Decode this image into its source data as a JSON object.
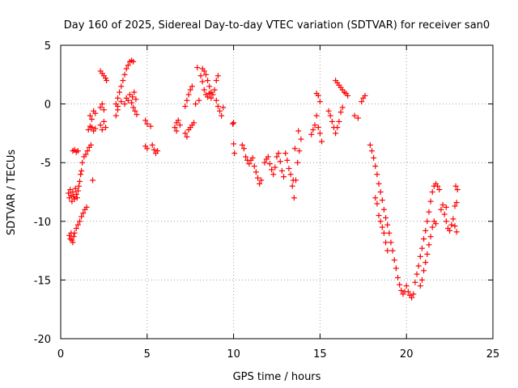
{
  "chart_data": {
    "type": "scatter",
    "title": "Day 160 of 2025, Sidereal Day-to-day VTEC variation (SDTVAR) for receiver san0",
    "xlabel": "GPS time / hours",
    "ylabel": "SDTVAR / TECUs",
    "xlim": [
      0,
      25
    ],
    "ylim": [
      -20,
      5
    ],
    "xticks": [
      0,
      5,
      10,
      15,
      20,
      25
    ],
    "yticks": [
      -20,
      -15,
      -10,
      -5,
      0,
      5
    ],
    "grid": true,
    "marker": "+",
    "series": [
      {
        "name": "SDTVAR",
        "color": "#ff0000",
        "points": [
          [
            0.45,
            -7.6
          ],
          [
            0.5,
            -8.0
          ],
          [
            0.55,
            -7.3
          ],
          [
            0.6,
            -7.8
          ],
          [
            0.65,
            -8.3
          ],
          [
            0.7,
            -7.5
          ],
          [
            0.75,
            -7.9
          ],
          [
            0.8,
            -8.1
          ],
          [
            0.85,
            -7.2
          ],
          [
            0.9,
            -7.7
          ],
          [
            0.95,
            -8.0
          ],
          [
            1.0,
            -7.4
          ],
          [
            1.05,
            -7.0
          ],
          [
            1.1,
            -6.6
          ],
          [
            1.15,
            -6.0
          ],
          [
            1.2,
            -5.7
          ],
          [
            1.25,
            -5.0
          ],
          [
            0.5,
            -11.2
          ],
          [
            0.55,
            -11.5
          ],
          [
            0.6,
            -11.0
          ],
          [
            0.65,
            -11.6
          ],
          [
            0.7,
            -11.8
          ],
          [
            0.75,
            -11.3
          ],
          [
            0.8,
            -11.0
          ],
          [
            0.9,
            -10.6
          ],
          [
            1.0,
            -10.3
          ],
          [
            1.1,
            -10.0
          ],
          [
            1.2,
            -9.6
          ],
          [
            1.3,
            -9.3
          ],
          [
            1.4,
            -9.0
          ],
          [
            1.5,
            -8.8
          ],
          [
            0.7,
            -4.0
          ],
          [
            0.8,
            -3.9
          ],
          [
            0.9,
            -4.1
          ],
          [
            1.0,
            -4.0
          ],
          [
            1.35,
            -4.5
          ],
          [
            1.45,
            -4.3
          ],
          [
            1.55,
            -4.0
          ],
          [
            1.65,
            -3.7
          ],
          [
            1.75,
            -3.5
          ],
          [
            1.85,
            -6.5
          ],
          [
            1.6,
            -2.2
          ],
          [
            1.7,
            -1.9
          ],
          [
            1.8,
            -2.0
          ],
          [
            1.9,
            -2.3
          ],
          [
            2.0,
            -2.1
          ],
          [
            1.7,
            -1.0
          ],
          [
            1.8,
            -1.3
          ],
          [
            1.9,
            -0.6
          ],
          [
            2.0,
            -0.8
          ],
          [
            2.3,
            -1.8
          ],
          [
            2.4,
            -2.2
          ],
          [
            2.5,
            -1.5
          ],
          [
            2.6,
            -2.0
          ],
          [
            2.3,
            -0.3
          ],
          [
            2.4,
            0.0
          ],
          [
            2.5,
            -0.5
          ],
          [
            2.3,
            2.8
          ],
          [
            2.4,
            2.6
          ],
          [
            2.5,
            2.4
          ],
          [
            2.6,
            2.2
          ],
          [
            2.65,
            2.0
          ],
          [
            3.2,
            -1.0
          ],
          [
            3.3,
            -0.5
          ],
          [
            3.2,
            0.0
          ],
          [
            3.3,
            0.5
          ],
          [
            3.4,
            1.0
          ],
          [
            3.5,
            1.5
          ],
          [
            3.6,
            2.0
          ],
          [
            3.7,
            2.5
          ],
          [
            3.8,
            3.0
          ],
          [
            3.9,
            3.3
          ],
          [
            4.0,
            3.6
          ],
          [
            4.1,
            3.7
          ],
          [
            4.2,
            3.6
          ],
          [
            3.3,
            -0.2
          ],
          [
            3.5,
            0.2
          ],
          [
            3.7,
            0.0
          ],
          [
            3.8,
            0.5
          ],
          [
            3.9,
            0.3
          ],
          [
            4.0,
            0.8
          ],
          [
            4.1,
            0.1
          ],
          [
            4.2,
            -0.3
          ],
          [
            4.3,
            -0.6
          ],
          [
            4.4,
            -0.9
          ],
          [
            4.15,
            0.6
          ],
          [
            4.25,
            1.0
          ],
          [
            4.35,
            0.4
          ],
          [
            4.9,
            -1.4
          ],
          [
            5.0,
            -1.7
          ],
          [
            5.2,
            -1.9
          ],
          [
            4.9,
            -3.6
          ],
          [
            5.0,
            -3.8
          ],
          [
            5.3,
            -3.5
          ],
          [
            5.4,
            -3.9
          ],
          [
            5.5,
            -4.2
          ],
          [
            5.6,
            -4.0
          ],
          [
            6.6,
            -2.0
          ],
          [
            6.7,
            -1.6
          ],
          [
            6.8,
            -1.4
          ],
          [
            6.9,
            -1.8
          ],
          [
            6.7,
            -2.3
          ],
          [
            7.2,
            -2.5
          ],
          [
            7.3,
            -2.8
          ],
          [
            7.4,
            -2.2
          ],
          [
            7.5,
            -2.0
          ],
          [
            7.6,
            -1.8
          ],
          [
            7.7,
            -1.6
          ],
          [
            7.2,
            -0.2
          ],
          [
            7.3,
            0.3
          ],
          [
            7.4,
            0.8
          ],
          [
            7.5,
            1.2
          ],
          [
            7.6,
            1.5
          ],
          [
            7.8,
            0.0
          ],
          [
            8.0,
            0.3
          ],
          [
            7.9,
            3.1
          ],
          [
            8.1,
            2.4
          ],
          [
            8.2,
            1.9
          ],
          [
            8.3,
            1.2
          ],
          [
            8.4,
            0.8
          ],
          [
            8.2,
            3.0
          ],
          [
            8.3,
            2.8
          ],
          [
            8.4,
            2.5
          ],
          [
            8.5,
            2.0
          ],
          [
            8.6,
            1.5
          ],
          [
            8.7,
            1.0
          ],
          [
            8.5,
            0.6
          ],
          [
            8.6,
            0.9
          ],
          [
            8.7,
            0.5
          ],
          [
            8.8,
            0.8
          ],
          [
            8.9,
            1.2
          ],
          [
            9.0,
            2.0
          ],
          [
            9.1,
            2.4
          ],
          [
            9.0,
            0.3
          ],
          [
            9.1,
            -0.2
          ],
          [
            9.2,
            -0.6
          ],
          [
            9.3,
            -1.0
          ],
          [
            9.4,
            -0.3
          ],
          [
            9.95,
            -1.7
          ],
          [
            10.0,
            -1.6
          ],
          [
            10.0,
            -3.4
          ],
          [
            10.05,
            -4.2
          ],
          [
            10.5,
            -3.5
          ],
          [
            10.6,
            -3.8
          ],
          [
            10.7,
            -4.5
          ],
          [
            10.8,
            -4.8
          ],
          [
            10.9,
            -5.1
          ],
          [
            11.0,
            -4.8
          ],
          [
            11.1,
            -4.6
          ],
          [
            11.2,
            -5.3
          ],
          [
            11.3,
            -5.8
          ],
          [
            11.4,
            -6.3
          ],
          [
            11.5,
            -6.8
          ],
          [
            11.6,
            -6.5
          ],
          [
            11.8,
            -5.0
          ],
          [
            11.9,
            -4.7
          ],
          [
            12.0,
            -4.5
          ],
          [
            12.1,
            -5.1
          ],
          [
            12.2,
            -5.6
          ],
          [
            12.3,
            -6.0
          ],
          [
            12.4,
            -5.4
          ],
          [
            12.5,
            -4.5
          ],
          [
            12.6,
            -4.2
          ],
          [
            12.7,
            -4.9
          ],
          [
            12.8,
            -5.7
          ],
          [
            12.9,
            -6.2
          ],
          [
            13.0,
            -4.2
          ],
          [
            13.1,
            -4.8
          ],
          [
            13.2,
            -5.5
          ],
          [
            13.3,
            -6.0
          ],
          [
            13.4,
            -7.0
          ],
          [
            13.5,
            -8.0
          ],
          [
            13.6,
            -6.5
          ],
          [
            13.7,
            -5.0
          ],
          [
            13.8,
            -4.0
          ],
          [
            13.9,
            -3.0
          ],
          [
            13.75,
            -2.3
          ],
          [
            13.55,
            -3.8
          ],
          [
            13.45,
            -6.5
          ],
          [
            14.5,
            -2.6
          ],
          [
            14.6,
            -2.2
          ],
          [
            14.7,
            -1.8
          ],
          [
            14.8,
            -1.0
          ],
          [
            14.9,
            -2.0
          ],
          [
            15.0,
            -2.5
          ],
          [
            15.1,
            -3.2
          ],
          [
            14.8,
            0.9
          ],
          [
            14.9,
            0.7
          ],
          [
            15.0,
            0.2
          ],
          [
            15.5,
            -0.6
          ],
          [
            15.6,
            -1.0
          ],
          [
            15.7,
            -1.5
          ],
          [
            15.8,
            -2.0
          ],
          [
            15.9,
            -2.5
          ],
          [
            16.0,
            -2.0
          ],
          [
            16.1,
            -1.5
          ],
          [
            16.2,
            -0.7
          ],
          [
            16.3,
            -0.3
          ],
          [
            15.9,
            2.0
          ],
          [
            16.0,
            1.8
          ],
          [
            16.1,
            1.6
          ],
          [
            16.2,
            1.4
          ],
          [
            16.3,
            1.2
          ],
          [
            16.4,
            1.0
          ],
          [
            16.5,
            0.9
          ],
          [
            16.6,
            0.7
          ],
          [
            17.0,
            -1.0
          ],
          [
            17.2,
            -1.2
          ],
          [
            17.4,
            0.2
          ],
          [
            17.5,
            0.5
          ],
          [
            17.6,
            0.7
          ],
          [
            17.9,
            -3.5
          ],
          [
            18.0,
            -4.0
          ],
          [
            18.1,
            -4.6
          ],
          [
            18.2,
            -5.3
          ],
          [
            18.3,
            -6.0
          ],
          [
            18.4,
            -6.8
          ],
          [
            18.5,
            -7.5
          ],
          [
            18.6,
            -8.2
          ],
          [
            18.7,
            -9.0
          ],
          [
            18.8,
            -9.7
          ],
          [
            18.9,
            -10.3
          ],
          [
            19.0,
            -11.0
          ],
          [
            19.1,
            -11.8
          ],
          [
            18.2,
            -8.0
          ],
          [
            18.3,
            -8.5
          ],
          [
            18.4,
            -9.5
          ],
          [
            18.5,
            -10.0
          ],
          [
            18.6,
            -10.5
          ],
          [
            18.7,
            -11.0
          ],
          [
            18.8,
            -11.8
          ],
          [
            18.9,
            -12.5
          ],
          [
            19.2,
            -12.5
          ],
          [
            19.3,
            -13.3
          ],
          [
            19.4,
            -14.0
          ],
          [
            19.5,
            -14.8
          ],
          [
            19.6,
            -15.4
          ],
          [
            19.7,
            -15.9
          ],
          [
            19.8,
            -16.2
          ],
          [
            19.9,
            -16.0
          ],
          [
            20.0,
            -15.5
          ],
          [
            20.1,
            -16.0
          ],
          [
            20.2,
            -16.3
          ],
          [
            20.3,
            -16.5
          ],
          [
            20.4,
            -16.2
          ],
          [
            20.5,
            -15.2
          ],
          [
            20.6,
            -14.5
          ],
          [
            20.7,
            -13.8
          ],
          [
            20.8,
            -13.0
          ],
          [
            20.9,
            -12.3
          ],
          [
            21.0,
            -11.5
          ],
          [
            21.1,
            -10.8
          ],
          [
            21.2,
            -10.0
          ],
          [
            21.3,
            -9.2
          ],
          [
            21.4,
            -8.3
          ],
          [
            21.5,
            -7.5
          ],
          [
            21.6,
            -7.0
          ],
          [
            21.7,
            -6.8
          ],
          [
            21.8,
            -7.0
          ],
          [
            21.9,
            -7.3
          ],
          [
            20.8,
            -15.5
          ],
          [
            20.9,
            -15.0
          ],
          [
            21.0,
            -14.2
          ],
          [
            21.1,
            -13.5
          ],
          [
            21.2,
            -12.8
          ],
          [
            21.3,
            -12.0
          ],
          [
            21.4,
            -11.3
          ],
          [
            21.5,
            -10.5
          ],
          [
            21.6,
            -10.0
          ],
          [
            21.7,
            -10.2
          ],
          [
            22.0,
            -9.0
          ],
          [
            22.1,
            -8.6
          ],
          [
            22.2,
            -9.4
          ],
          [
            22.3,
            -10.0
          ],
          [
            22.4,
            -10.6
          ],
          [
            22.5,
            -10.8
          ],
          [
            22.6,
            -10.3
          ],
          [
            22.7,
            -9.8
          ],
          [
            22.8,
            -8.7
          ],
          [
            22.9,
            -8.4
          ],
          [
            22.8,
            -10.4
          ],
          [
            22.9,
            -10.9
          ],
          [
            22.85,
            -7.0
          ],
          [
            22.95,
            -7.3
          ],
          [
            22.3,
            -8.8
          ]
        ]
      }
    ]
  }
}
